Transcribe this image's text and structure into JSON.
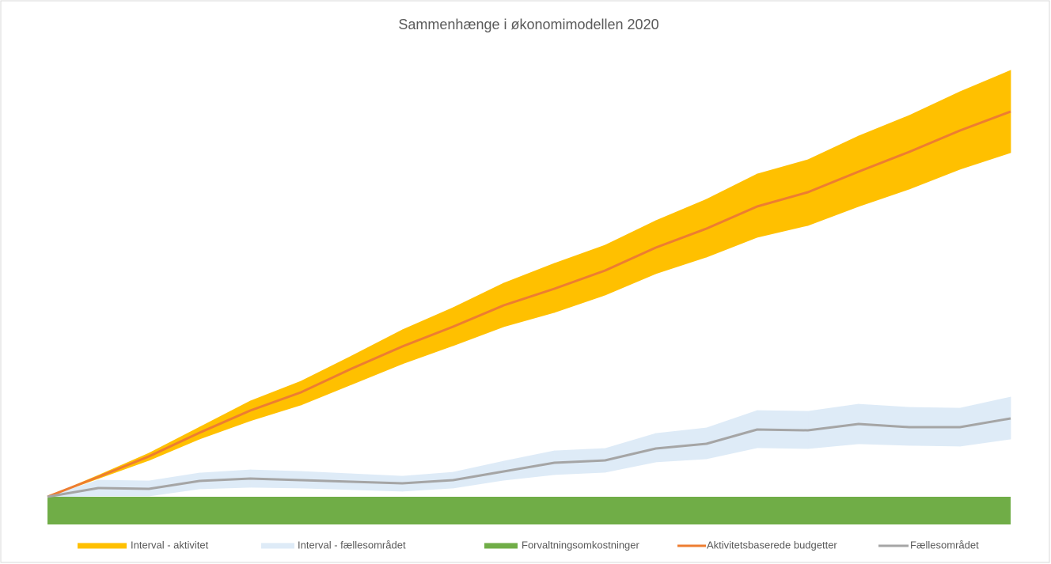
{
  "chart_data": {
    "type": "line",
    "title": "Sammenhænge i økonomimodellen 2020",
    "categories": [
      null,
      null,
      null,
      null,
      null,
      null,
      null,
      null,
      null,
      null,
      null,
      null,
      null,
      null,
      null,
      null,
      null,
      null,
      null,
      null
    ],
    "ylim": [
      -7,
      113
    ],
    "bands": [
      {
        "name": "Interval - aktivitet",
        "color": "#ffc000",
        "high": [
          0,
          5.4,
          11,
          17.6,
          24.2,
          29.2,
          35.6,
          42.2,
          47.8,
          54,
          59,
          63.6,
          69.8,
          75.2,
          81.6,
          85.2,
          91.2,
          96.4,
          102.4,
          107.8
        ],
        "low": [
          0,
          4.6,
          9.2,
          14.6,
          19.2,
          23.2,
          28.4,
          33.6,
          38.2,
          43,
          46.6,
          51,
          56.4,
          60.6,
          65.6,
          68.6,
          73.4,
          77.8,
          82.8,
          87
        ]
      },
      {
        "name": "Interval - fællesområdet",
        "color": "#deebf7",
        "high": [
          0,
          4.2,
          4,
          6,
          6.8,
          6.4,
          5.8,
          5.2,
          6.2,
          9,
          11.6,
          12.2,
          16,
          17.4,
          21.8,
          21.6,
          23.4,
          22.6,
          22.4,
          25.2
        ],
        "low": [
          0,
          0.2,
          0.2,
          2,
          2.4,
          2.2,
          1.8,
          1.4,
          2.2,
          4.2,
          5.6,
          6.2,
          8.8,
          9.6,
          12.4,
          12.2,
          13.4,
          13,
          12.8,
          14.6
        ]
      }
    ],
    "bar": {
      "name": "Forvaltningsomkostninger",
      "color": "#70ad47",
      "value": -7
    },
    "series": [
      {
        "name": "Aktivitetsbaserede budgetter",
        "color": "#ed7d31",
        "values": [
          0,
          5,
          10.2,
          16.2,
          21.8,
          26.4,
          32.4,
          38,
          43,
          48.4,
          52.6,
          57.2,
          63,
          67.8,
          73.4,
          77,
          82.2,
          87.2,
          92.6,
          97.4
        ]
      },
      {
        "name": "Fællesområdet",
        "color": "#a5a5a5",
        "values": [
          0,
          2.2,
          2,
          4,
          4.6,
          4.2,
          3.8,
          3.4,
          4.2,
          6.4,
          8.6,
          9.2,
          12.2,
          13.4,
          17,
          16.8,
          18.4,
          17.6,
          17.6,
          19.8
        ]
      }
    ]
  }
}
